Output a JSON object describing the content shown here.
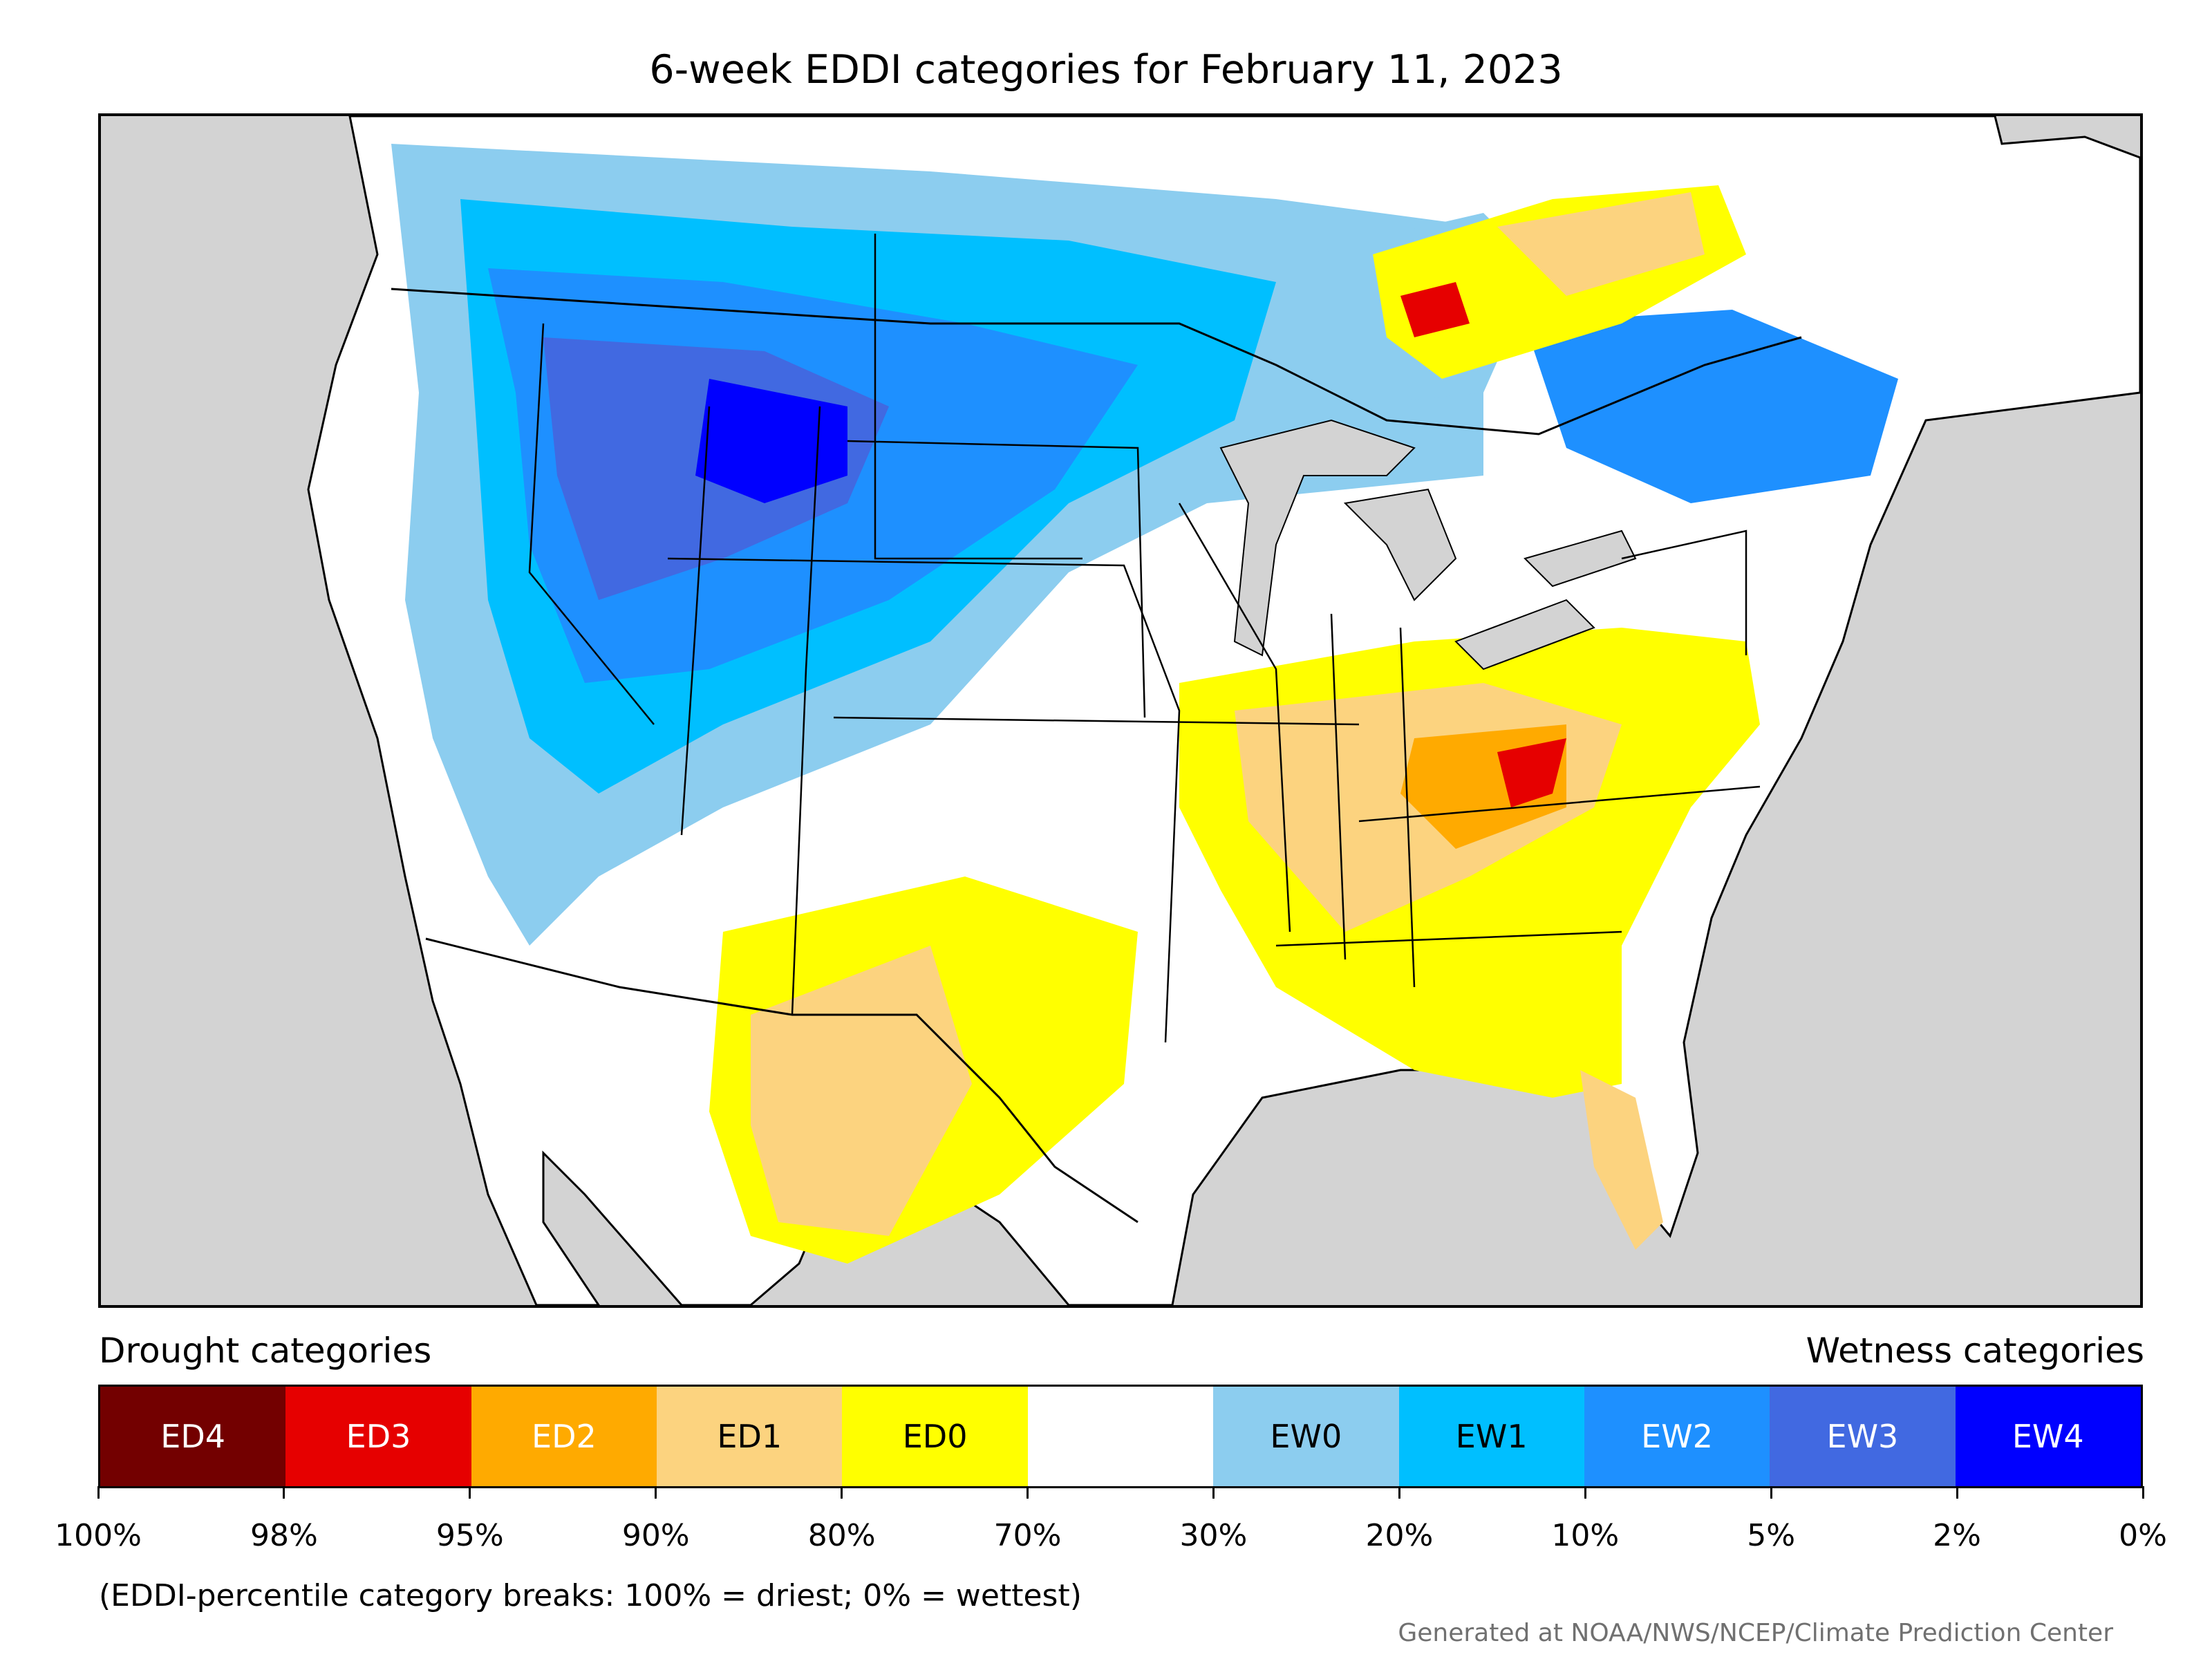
{
  "title": "6-week EDDI categories for February 11, 2023",
  "map": {
    "background_color": "#d3d3d3",
    "ocean_land_note": "CONUS EDDI category map",
    "category_colors": {
      "ED4": "#730000",
      "ED3": "#e60000",
      "ED2": "#ffaa00",
      "ED1": "#fcd37f",
      "ED0": "#ffff00",
      "neutral": "#ffffff",
      "EW0": "#8ccdef",
      "EW1": "#00bfff",
      "EW2": "#1e90ff",
      "EW3": "#4169e1",
      "EW4": "#0000ff"
    }
  },
  "legend": {
    "drought_heading": "Drought categories",
    "wetness_heading": "Wetness categories",
    "categories": [
      {
        "label": "ED4",
        "color": "#730000",
        "text_color": "#ffffff"
      },
      {
        "label": "ED3",
        "color": "#e60000",
        "text_color": "#ffffff"
      },
      {
        "label": "ED2",
        "color": "#ffaa00",
        "text_color": "#ffffff"
      },
      {
        "label": "ED1",
        "color": "#fcd37f",
        "text_color": "#000000"
      },
      {
        "label": "ED0",
        "color": "#ffff00",
        "text_color": "#000000"
      },
      {
        "label": "",
        "color": "#ffffff",
        "text_color": "#000000"
      },
      {
        "label": "EW0",
        "color": "#8ccdef",
        "text_color": "#000000"
      },
      {
        "label": "EW1",
        "color": "#00bfff",
        "text_color": "#000000"
      },
      {
        "label": "EW2",
        "color": "#1e90ff",
        "text_color": "#ffffff"
      },
      {
        "label": "EW3",
        "color": "#4169e1",
        "text_color": "#ffffff"
      },
      {
        "label": "EW4",
        "color": "#0000ff",
        "text_color": "#ffffff"
      }
    ],
    "tick_labels": [
      "100%",
      "98%",
      "95%",
      "90%",
      "80%",
      "70%",
      "30%",
      "20%",
      "10%",
      "5%",
      "2%",
      "0%"
    ]
  },
  "note": "(EDDI-percentile category breaks: 100% = driest; 0% = wettest)",
  "credit": "Generated at NOAA/NWS/NCEP/Climate Prediction Center"
}
